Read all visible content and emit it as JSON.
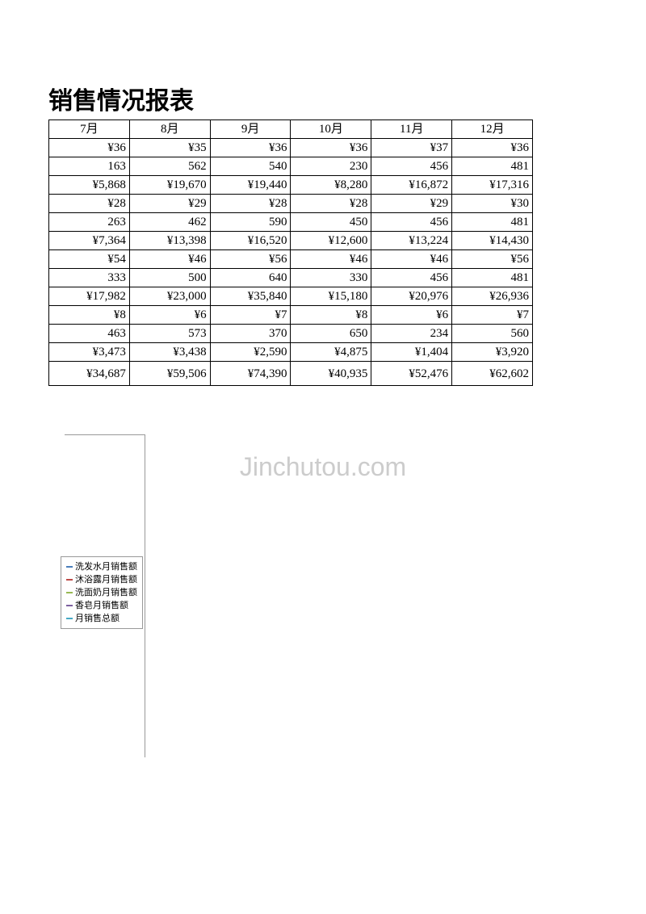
{
  "title": "销售情况报表",
  "watermark": "Jinchutou.com",
  "table": {
    "headers": [
      "7月",
      "8月",
      "9月",
      "10月",
      "11月",
      "12月"
    ],
    "rows": [
      [
        "¥36",
        "¥35",
        "¥36",
        "¥36",
        "¥37",
        "¥36"
      ],
      [
        "163",
        "562",
        "540",
        "230",
        "456",
        "481"
      ],
      [
        "¥5,868",
        "¥19,670",
        "¥19,440",
        "¥8,280",
        "¥16,872",
        "¥17,316"
      ],
      [
        "¥28",
        "¥29",
        "¥28",
        "¥28",
        "¥29",
        "¥30"
      ],
      [
        "263",
        "462",
        "590",
        "450",
        "456",
        "481"
      ],
      [
        "¥7,364",
        "¥13,398",
        "¥16,520",
        "¥12,600",
        "¥13,224",
        "¥14,430"
      ],
      [
        "¥54",
        "¥46",
        "¥56",
        "¥46",
        "¥46",
        "¥56"
      ],
      [
        "333",
        "500",
        "640",
        "330",
        "456",
        "481"
      ],
      [
        "¥17,982",
        "¥23,000",
        "¥35,840",
        "¥15,180",
        "¥20,976",
        "¥26,936"
      ],
      [
        "¥8",
        "¥6",
        "¥7",
        "¥8",
        "¥6",
        "¥7"
      ],
      [
        "463",
        "573",
        "370",
        "650",
        "234",
        "560"
      ],
      [
        "¥3,473",
        "¥3,438",
        "¥2,590",
        "¥4,875",
        "¥1,404",
        "¥3,920"
      ]
    ],
    "total_row": [
      "¥34,687",
      "¥59,506",
      "¥74,390",
      "¥40,935",
      "¥52,476",
      "¥62,602"
    ]
  },
  "legend": {
    "items": [
      {
        "label": "洗发水月销售额",
        "color": "#4a7ebb"
      },
      {
        "label": "沐浴露月销售额",
        "color": "#be4b48"
      },
      {
        "label": "洗面奶月销售额",
        "color": "#98b954"
      },
      {
        "label": "香皂月销售额",
        "color": "#7d60a0"
      },
      {
        "label": "月销售总额",
        "color": "#46aac5"
      }
    ]
  }
}
